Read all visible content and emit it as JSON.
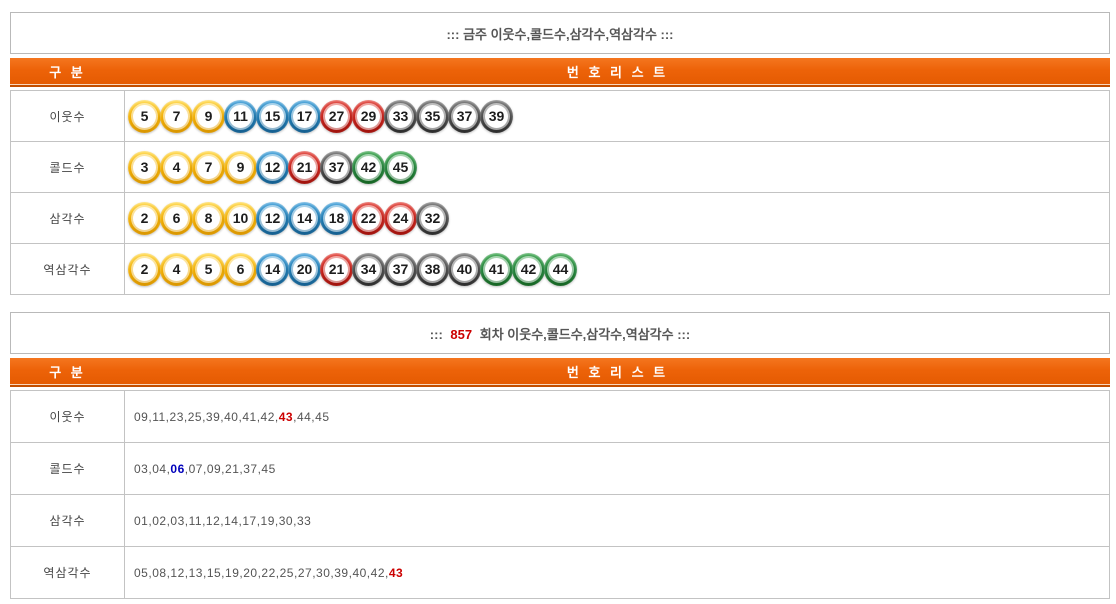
{
  "colors": {
    "accent_orange": "#ED6309",
    "header_border_dark": "#C34E00",
    "highlight_red": "#CC0000",
    "highlight_blue": "#0000BB",
    "ball_groups": {
      "yellow": {
        "light": "#FFD94F",
        "base": "#F0AC00",
        "dark": "#D89500"
      },
      "blue": {
        "light": "#4CA6DC",
        "base": "#1C77AE",
        "dark": "#155E8E"
      },
      "red": {
        "light": "#E34A42",
        "base": "#C41F18",
        "dark": "#9E120C"
      },
      "gray": {
        "light": "#7A7A7A",
        "base": "#4A4A4A",
        "dark": "#2B2B2B"
      },
      "green": {
        "light": "#43A854",
        "base": "#22813A",
        "dark": "#156322"
      }
    }
  },
  "section_current": {
    "title": "::: 금주 이웃수,콜드수,삼각수,역삼각수 :::",
    "header": {
      "col1": "구 분",
      "col2": "번 호 리 스 트"
    },
    "rows": [
      {
        "label": "이웃수",
        "balls": [
          5,
          7,
          9,
          11,
          15,
          17,
          27,
          29,
          33,
          35,
          37,
          39
        ]
      },
      {
        "label": "콜드수",
        "balls": [
          3,
          4,
          7,
          9,
          12,
          21,
          37,
          42,
          45
        ]
      },
      {
        "label": "삼각수",
        "balls": [
          2,
          6,
          8,
          10,
          12,
          14,
          18,
          22,
          24,
          32
        ]
      },
      {
        "label": "역삼각수",
        "balls": [
          2,
          4,
          5,
          6,
          14,
          20,
          21,
          34,
          37,
          38,
          40,
          41,
          42,
          44
        ]
      }
    ]
  },
  "section_round": {
    "title_prefix": ":::",
    "round_number": "857",
    "title_suffix": "회차 이웃수,콜드수,삼각수,역삼각수 :::",
    "header": {
      "col1": "구 분",
      "col2": "번 호 리 스 트"
    },
    "rows": [
      {
        "label": "이웃수",
        "numbers": [
          "09",
          "11",
          "23",
          "25",
          "39",
          "40",
          "41",
          "42",
          {
            "t": "43",
            "hl": "red"
          },
          "44",
          "45"
        ]
      },
      {
        "label": "콜드수",
        "numbers": [
          "03",
          "04",
          {
            "t": "06",
            "hl": "blue"
          },
          "07",
          "09",
          "21",
          "37",
          "45"
        ]
      },
      {
        "label": "삼각수",
        "numbers": [
          "01",
          "02",
          "03",
          "11",
          "12",
          "14",
          "17",
          "19",
          "30",
          "33"
        ]
      },
      {
        "label": "역삼각수",
        "numbers": [
          "05",
          "08",
          "12",
          "13",
          "15",
          "19",
          "20",
          "22",
          "25",
          "27",
          "30",
          "39",
          "40",
          "42",
          {
            "t": "43",
            "hl": "red"
          }
        ]
      }
    ]
  }
}
